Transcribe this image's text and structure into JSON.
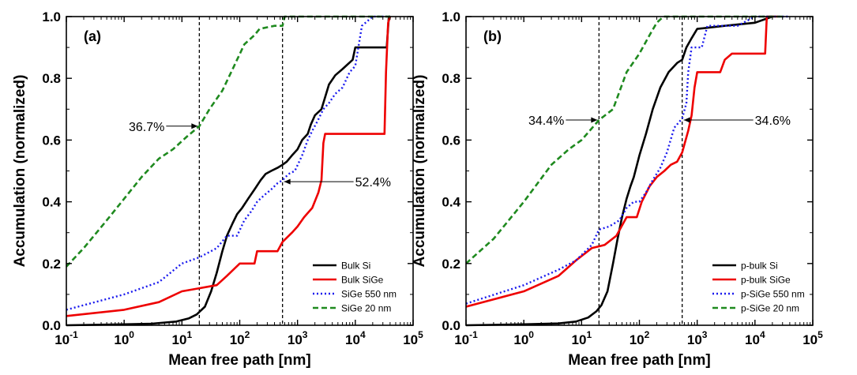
{
  "chart_data": [
    {
      "type": "line",
      "panel_label": "(a)",
      "xlabel": "Mean free path [nm]",
      "ylabel": "Accumulation (normalized)",
      "x_scale": "log",
      "xlim": [
        0.1,
        100000
      ],
      "ylim": [
        0,
        1.0
      ],
      "x_ticks": [
        0.1,
        1,
        10,
        100,
        1000,
        10000,
        100000
      ],
      "x_tick_labels": [
        {
          "base": "10",
          "exp": "-1"
        },
        {
          "base": "10",
          "exp": "0"
        },
        {
          "base": "10",
          "exp": "1"
        },
        {
          "base": "10",
          "exp": "2"
        },
        {
          "base": "10",
          "exp": "3"
        },
        {
          "base": "10",
          "exp": "4"
        },
        {
          "base": "10",
          "exp": "5"
        }
      ],
      "y_ticks": [
        0,
        0.2,
        0.4,
        0.6,
        0.8,
        1.0
      ],
      "y_tick_labels": [
        "0.0",
        "0.2",
        "0.4",
        "0.6",
        "0.8",
        "1.0"
      ],
      "legend_position": "bottom-right",
      "vlines": [
        20,
        550
      ],
      "annotations": [
        {
          "text": "36.7%",
          "x": 20,
          "y": 0.645,
          "side": "left"
        },
        {
          "text": "52.4%",
          "x": 550,
          "y": 0.465,
          "side": "right"
        }
      ],
      "series": [
        {
          "name": "Bulk Si",
          "color": "#000000",
          "dash": "solid",
          "width": 2.6,
          "points": [
            [
              0.1,
              0
            ],
            [
              1,
              0.003
            ],
            [
              3,
              0.005
            ],
            [
              8,
              0.012
            ],
            [
              13,
              0.022
            ],
            [
              18,
              0.035
            ],
            [
              25,
              0.06
            ],
            [
              32,
              0.11
            ],
            [
              40,
              0.17
            ],
            [
              50,
              0.24
            ],
            [
              60,
              0.29
            ],
            [
              75,
              0.33
            ],
            [
              90,
              0.36
            ],
            [
              110,
              0.38
            ],
            [
              140,
              0.41
            ],
            [
              180,
              0.44
            ],
            [
              230,
              0.47
            ],
            [
              280,
              0.49
            ],
            [
              350,
              0.5
            ],
            [
              450,
              0.51
            ],
            [
              550,
              0.52
            ],
            [
              650,
              0.53
            ],
            [
              800,
              0.55
            ],
            [
              1000,
              0.57
            ],
            [
              1200,
              0.6
            ],
            [
              1500,
              0.62
            ],
            [
              1700,
              0.65
            ],
            [
              2000,
              0.68
            ],
            [
              2600,
              0.7
            ],
            [
              3500,
              0.78
            ],
            [
              4500,
              0.81
            ],
            [
              6000,
              0.83
            ],
            [
              9000,
              0.86
            ],
            [
              10000,
              0.9
            ],
            [
              20000,
              0.9
            ],
            [
              35000,
              0.9
            ],
            [
              38000,
              1.0
            ],
            [
              40000,
              1.0
            ]
          ]
        },
        {
          "name": "Bulk SiGe",
          "color": "#ee0000",
          "dash": "solid",
          "width": 2.6,
          "points": [
            [
              0.1,
              0.03
            ],
            [
              1,
              0.05
            ],
            [
              4,
              0.075
            ],
            [
              10,
              0.11
            ],
            [
              20,
              0.12
            ],
            [
              40,
              0.13
            ],
            [
              60,
              0.16
            ],
            [
              100,
              0.2
            ],
            [
              180,
              0.2
            ],
            [
              200,
              0.24
            ],
            [
              450,
              0.24
            ],
            [
              550,
              0.27
            ],
            [
              800,
              0.3
            ],
            [
              1000,
              0.32
            ],
            [
              1300,
              0.35
            ],
            [
              1800,
              0.38
            ],
            [
              2300,
              0.43
            ],
            [
              2600,
              0.47
            ],
            [
              2800,
              0.59
            ],
            [
              3000,
              0.62
            ],
            [
              32000,
              0.62
            ],
            [
              34000,
              0.82
            ],
            [
              37000,
              0.98
            ],
            [
              40000,
              1.0
            ]
          ]
        },
        {
          "name": "SiGe 550 nm",
          "color": "#1a1aee",
          "dash": "dotted",
          "width": 2.4,
          "points": [
            [
              0.1,
              0.05
            ],
            [
              1,
              0.1
            ],
            [
              4,
              0.14
            ],
            [
              10,
              0.2
            ],
            [
              20,
              0.22
            ],
            [
              40,
              0.25
            ],
            [
              60,
              0.29
            ],
            [
              90,
              0.29
            ],
            [
              120,
              0.34
            ],
            [
              160,
              0.37
            ],
            [
              200,
              0.4
            ],
            [
              260,
              0.42
            ],
            [
              350,
              0.44
            ],
            [
              450,
              0.46
            ],
            [
              550,
              0.47
            ],
            [
              700,
              0.49
            ],
            [
              900,
              0.5
            ],
            [
              1200,
              0.55
            ],
            [
              1500,
              0.6
            ],
            [
              1800,
              0.63
            ],
            [
              2200,
              0.66
            ],
            [
              2800,
              0.7
            ],
            [
              3500,
              0.72
            ],
            [
              4500,
              0.75
            ],
            [
              6000,
              0.77
            ],
            [
              8000,
              0.82
            ],
            [
              10000,
              0.84
            ],
            [
              12000,
              0.93
            ],
            [
              13000,
              0.97
            ],
            [
              20000,
              1.0
            ],
            [
              35000,
              1.0
            ]
          ]
        },
        {
          "name": "SiGe 20 nm",
          "color": "#1f8a1f",
          "dash": "dashed",
          "width": 2.6,
          "points": [
            [
              0.1,
              0.19
            ],
            [
              0.2,
              0.25
            ],
            [
              0.5,
              0.34
            ],
            [
              1,
              0.41
            ],
            [
              2,
              0.48
            ],
            [
              4,
              0.54
            ],
            [
              7,
              0.57
            ],
            [
              12,
              0.61
            ],
            [
              20,
              0.645
            ],
            [
              30,
              0.7
            ],
            [
              50,
              0.76
            ],
            [
              80,
              0.84
            ],
            [
              120,
              0.91
            ],
            [
              180,
              0.94
            ],
            [
              220,
              0.96
            ],
            [
              400,
              0.97
            ],
            [
              550,
              0.97
            ],
            [
              600,
              1.0
            ],
            [
              40000,
              1.0
            ]
          ]
        }
      ]
    },
    {
      "type": "line",
      "panel_label": "(b)",
      "xlabel": "Mean free path [nm]",
      "ylabel": "Accumulation (normalized)",
      "x_scale": "log",
      "xlim": [
        0.1,
        100000
      ],
      "ylim": [
        0,
        1.0
      ],
      "x_ticks": [
        0.1,
        1,
        10,
        100,
        1000,
        10000,
        100000
      ],
      "x_tick_labels": [
        {
          "base": "10",
          "exp": "-1"
        },
        {
          "base": "10",
          "exp": "0"
        },
        {
          "base": "10",
          "exp": "1"
        },
        {
          "base": "10",
          "exp": "2"
        },
        {
          "base": "10",
          "exp": "3"
        },
        {
          "base": "10",
          "exp": "4"
        },
        {
          "base": "10",
          "exp": "5"
        }
      ],
      "y_ticks": [
        0,
        0.2,
        0.4,
        0.6,
        0.8,
        1.0
      ],
      "y_tick_labels": [
        "0.0",
        "0.2",
        "0.4",
        "0.6",
        "0.8",
        "1.0"
      ],
      "legend_position": "bottom-right",
      "vlines": [
        20,
        550
      ],
      "annotations": [
        {
          "text": "34.4%",
          "x": 20,
          "y": 0.665,
          "side": "left"
        },
        {
          "text": "34.6%",
          "x": 550,
          "y": 0.665,
          "side": "right"
        }
      ],
      "series": [
        {
          "name": "p-bulk Si",
          "color": "#000000",
          "dash": "solid",
          "width": 2.6,
          "points": [
            [
              0.1,
              0
            ],
            [
              1,
              0.003
            ],
            [
              4,
              0.006
            ],
            [
              8,
              0.012
            ],
            [
              13,
              0.025
            ],
            [
              18,
              0.045
            ],
            [
              22,
              0.065
            ],
            [
              28,
              0.11
            ],
            [
              35,
              0.2
            ],
            [
              42,
              0.28
            ],
            [
              50,
              0.35
            ],
            [
              60,
              0.41
            ],
            [
              70,
              0.45
            ],
            [
              80,
              0.48
            ],
            [
              100,
              0.55
            ],
            [
              130,
              0.62
            ],
            [
              170,
              0.7
            ],
            [
              230,
              0.77
            ],
            [
              320,
              0.82
            ],
            [
              450,
              0.85
            ],
            [
              550,
              0.86
            ],
            [
              650,
              0.9
            ],
            [
              800,
              0.93
            ],
            [
              1000,
              0.96
            ],
            [
              3000,
              0.97
            ],
            [
              10000,
              0.98
            ],
            [
              20000,
              1.0
            ]
          ]
        },
        {
          "name": "p-bulk SiGe",
          "color": "#ee0000",
          "dash": "solid",
          "width": 2.6,
          "points": [
            [
              0.1,
              0.06
            ],
            [
              1,
              0.11
            ],
            [
              4,
              0.16
            ],
            [
              8,
              0.21
            ],
            [
              15,
              0.25
            ],
            [
              25,
              0.26
            ],
            [
              40,
              0.29
            ],
            [
              60,
              0.35
            ],
            [
              90,
              0.35
            ],
            [
              110,
              0.4
            ],
            [
              150,
              0.45
            ],
            [
              200,
              0.48
            ],
            [
              270,
              0.5
            ],
            [
              350,
              0.52
            ],
            [
              450,
              0.53
            ],
            [
              550,
              0.56
            ],
            [
              700,
              0.63
            ],
            [
              800,
              0.68
            ],
            [
              900,
              0.77
            ],
            [
              1000,
              0.82
            ],
            [
              2500,
              0.82
            ],
            [
              3000,
              0.86
            ],
            [
              4000,
              0.88
            ],
            [
              15000,
              0.88
            ],
            [
              16000,
              1.0
            ],
            [
              25000,
              1.0
            ]
          ]
        },
        {
          "name": "p-SiGe 550 nm",
          "color": "#1a1aee",
          "dash": "dotted",
          "width": 2.4,
          "points": [
            [
              0.1,
              0.07
            ],
            [
              1,
              0.13
            ],
            [
              4,
              0.18
            ],
            [
              8,
              0.21
            ],
            [
              15,
              0.26
            ],
            [
              20,
              0.31
            ],
            [
              30,
              0.32
            ],
            [
              45,
              0.34
            ],
            [
              60,
              0.38
            ],
            [
              80,
              0.4
            ],
            [
              100,
              0.4
            ],
            [
              130,
              0.43
            ],
            [
              170,
              0.47
            ],
            [
              230,
              0.51
            ],
            [
              300,
              0.56
            ],
            [
              400,
              0.64
            ],
            [
              550,
              0.67
            ],
            [
              650,
              0.72
            ],
            [
              700,
              0.82
            ],
            [
              800,
              0.9
            ],
            [
              1200,
              0.9
            ],
            [
              1500,
              0.97
            ],
            [
              5000,
              0.97
            ],
            [
              10000,
              1.0
            ],
            [
              40000,
              1.0
            ]
          ]
        },
        {
          "name": "p-SiGe 20 nm",
          "color": "#1f8a1f",
          "dash": "dashed",
          "width": 2.6,
          "points": [
            [
              0.1,
              0.2
            ],
            [
              0.3,
              0.28
            ],
            [
              1,
              0.4
            ],
            [
              3,
              0.52
            ],
            [
              6,
              0.57
            ],
            [
              10,
              0.6
            ],
            [
              20,
              0.665
            ],
            [
              35,
              0.7
            ],
            [
              60,
              0.82
            ],
            [
              100,
              0.88
            ],
            [
              150,
              0.94
            ],
            [
              200,
              0.98
            ],
            [
              260,
              1.0
            ],
            [
              30000,
              1.0
            ]
          ]
        }
      ]
    }
  ]
}
